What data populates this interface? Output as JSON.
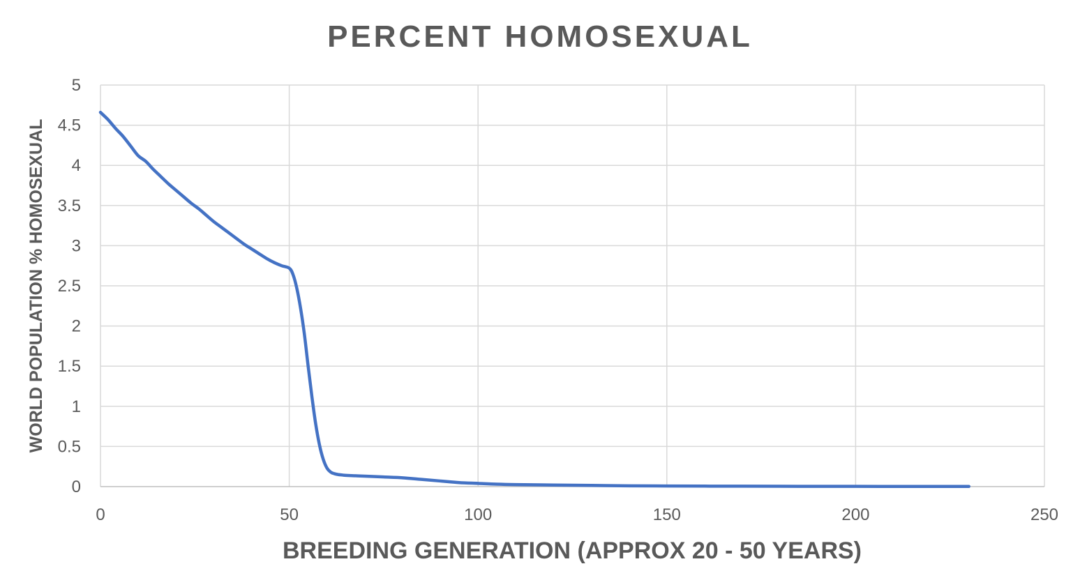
{
  "chart_data": {
    "type": "line",
    "title": "PERCENT HOMOSEXUAL",
    "xlabel": "BREEDING GENERATION (APPROX 20 - 50 YEARS)",
    "ylabel": "WORLD POPULATION % HOMOSEXUAL",
    "xlim": [
      0,
      250
    ],
    "ylim": [
      0,
      5
    ],
    "x_ticks": [
      0,
      50,
      100,
      150,
      200,
      250
    ],
    "y_ticks": [
      0,
      0.5,
      1,
      1.5,
      2,
      2.5,
      3,
      3.5,
      4,
      4.5,
      5
    ],
    "x_tick_labels": [
      "0",
      "50",
      "100",
      "150",
      "200",
      "250"
    ],
    "y_tick_labels": [
      "0",
      "0.5",
      "1",
      "1.5",
      "2",
      "2.5",
      "3",
      "3.5",
      "4",
      "4.5",
      "5"
    ],
    "grid": true,
    "legend": "none",
    "series": [
      {
        "color": "#4472C4",
        "x": [
          0,
          2,
          4,
          6,
          8,
          10,
          12,
          14,
          16,
          18,
          20,
          22,
          24,
          26,
          28,
          30,
          32,
          34,
          36,
          38,
          40,
          42,
          44,
          46,
          48,
          50,
          51,
          52,
          53,
          54,
          55,
          56,
          57,
          58,
          59,
          60,
          61,
          62,
          63,
          64,
          65,
          70,
          75,
          80,
          85,
          90,
          95,
          100,
          105,
          110,
          120,
          130,
          140,
          150,
          160,
          170,
          180,
          190,
          200,
          210,
          220,
          230
        ],
        "y": [
          4.66,
          4.57,
          4.46,
          4.36,
          4.24,
          4.12,
          4.05,
          3.95,
          3.86,
          3.77,
          3.69,
          3.61,
          3.53,
          3.46,
          3.38,
          3.3,
          3.23,
          3.16,
          3.09,
          3.02,
          2.96,
          2.9,
          2.84,
          2.79,
          2.75,
          2.72,
          2.64,
          2.47,
          2.22,
          1.9,
          1.5,
          1.12,
          0.78,
          0.52,
          0.34,
          0.23,
          0.18,
          0.16,
          0.15,
          0.145,
          0.14,
          0.13,
          0.12,
          0.11,
          0.09,
          0.07,
          0.05,
          0.04,
          0.03,
          0.025,
          0.02,
          0.015,
          0.01,
          0.008,
          0.006,
          0.005,
          0.004,
          0.003,
          0.003,
          0.002,
          0.002,
          0.002
        ]
      }
    ]
  }
}
